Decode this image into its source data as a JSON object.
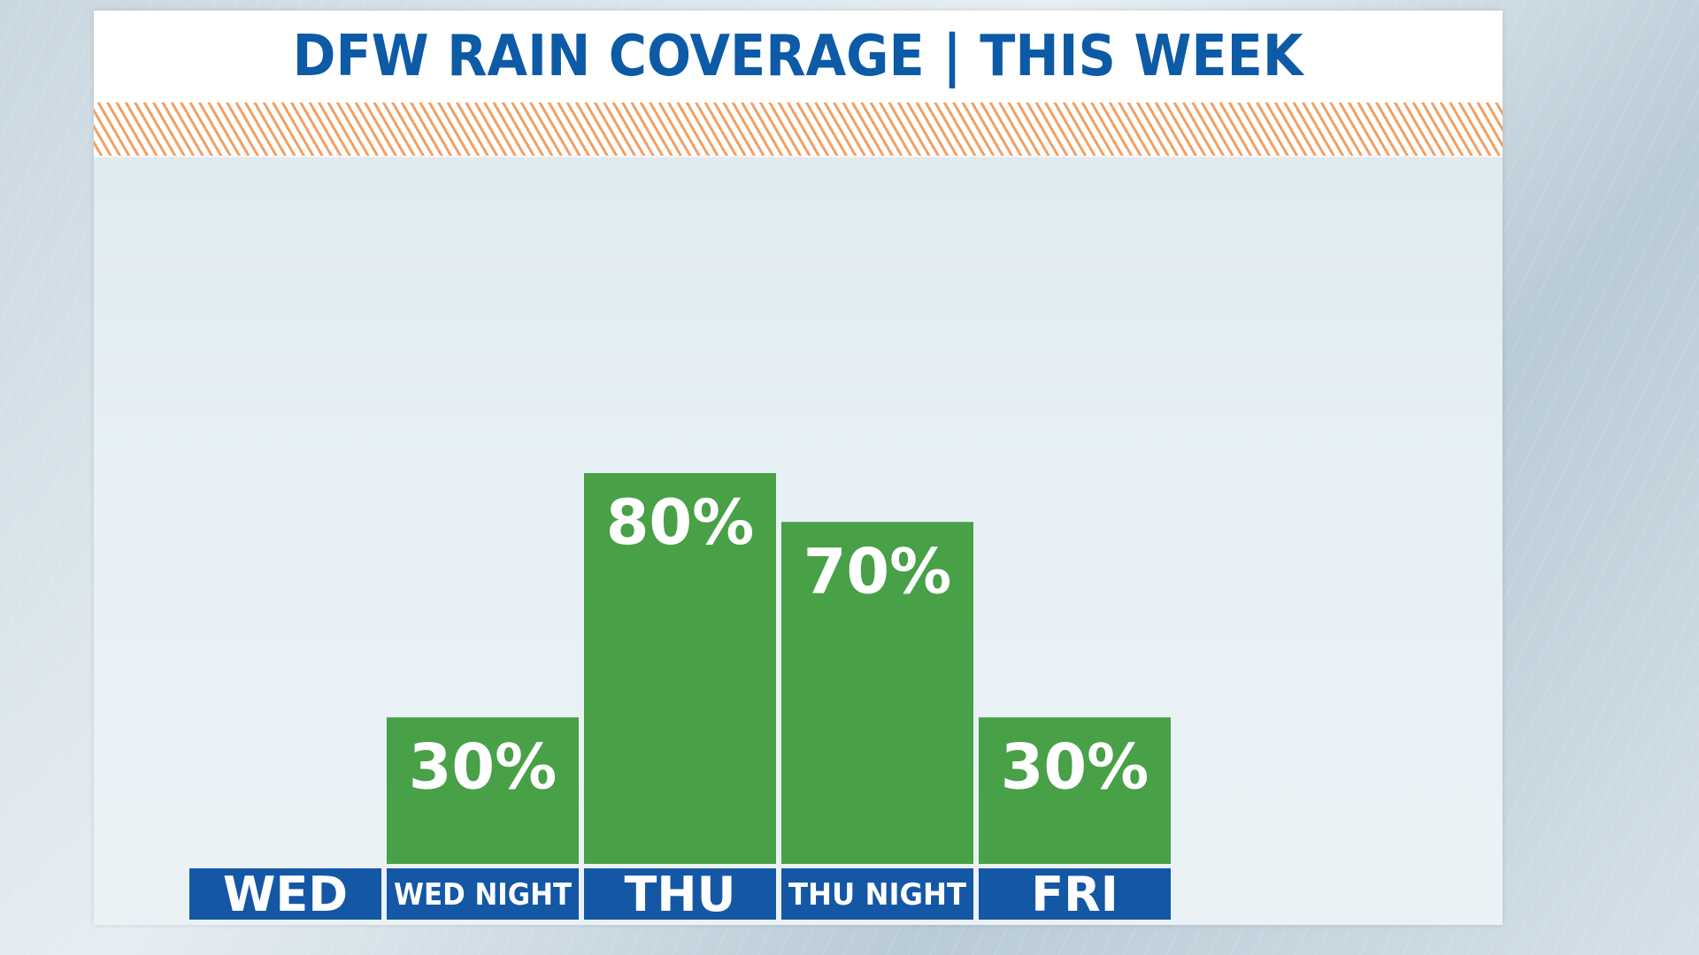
{
  "title": "DFW RAIN COVERAGE | THIS WEEK",
  "colors": {
    "title": "#0d5aa6",
    "bar": "#48a047",
    "category_band": "#1457a5",
    "hatch": "#f2a064"
  },
  "chart_data": {
    "type": "bar",
    "title": "DFW RAIN COVERAGE | THIS WEEK",
    "categories": [
      "WED",
      "WED NIGHT",
      "THU",
      "THU NIGHT",
      "FRI"
    ],
    "values": [
      0,
      30,
      80,
      70,
      30
    ],
    "value_labels": [
      "",
      "30%",
      "80%",
      "70%",
      "30%"
    ],
    "unit": "%",
    "ylim": [
      0,
      100
    ],
    "grid": false,
    "legend": "none"
  }
}
